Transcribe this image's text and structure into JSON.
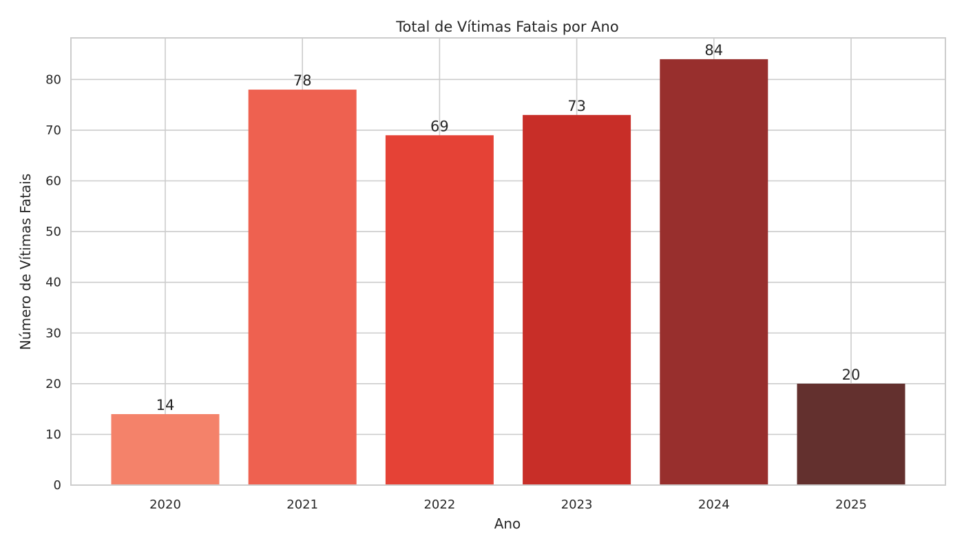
{
  "chart_data": {
    "type": "bar",
    "title": "Total de Vítimas Fatais por Ano",
    "xlabel": "Ano",
    "ylabel": "Número de Vítimas Fatais",
    "categories": [
      "2020",
      "2021",
      "2022",
      "2023",
      "2024",
      "2025"
    ],
    "values": [
      14,
      78,
      69,
      73,
      84,
      20
    ],
    "data_labels": [
      "14",
      "78",
      "69",
      "73",
      "84",
      "20"
    ],
    "colors": [
      "#f4826a",
      "#ee6150",
      "#e54236",
      "#c82e28",
      "#982f2d",
      "#63302e"
    ],
    "ylim": [
      0,
      88.2
    ],
    "yticks": [
      0,
      10,
      20,
      30,
      40,
      50,
      60,
      70,
      80
    ],
    "grid": true,
    "legend": "none",
    "grid_color": "#cccccc",
    "spine_color": "#cccccc",
    "text_color": "#262626"
  }
}
